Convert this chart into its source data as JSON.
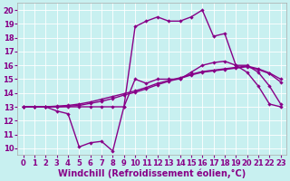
{
  "xlabel": "Windchill (Refroidissement éolien,°C)",
  "bg_color": "#c8f0f0",
  "line_color": "#880088",
  "ylim": [
    9.5,
    20.5
  ],
  "xlim": [
    -0.5,
    23.5
  ],
  "yticks": [
    10,
    11,
    12,
    13,
    14,
    15,
    16,
    17,
    18,
    19,
    20
  ],
  "xticks": [
    0,
    1,
    2,
    3,
    4,
    5,
    6,
    7,
    8,
    9,
    10,
    11,
    12,
    13,
    14,
    15,
    16,
    17,
    18,
    19,
    20,
    21,
    22,
    23
  ],
  "hours": [
    0,
    1,
    2,
    3,
    4,
    5,
    6,
    7,
    8,
    9,
    10,
    11,
    12,
    13,
    14,
    15,
    16,
    17,
    18,
    19,
    20,
    21,
    22,
    23
  ],
  "top_curve": [
    13,
    13,
    13,
    13,
    13,
    13,
    13,
    13,
    13,
    13,
    18.8,
    19.2,
    19.5,
    19.2,
    19.2,
    19.5,
    20.0,
    18.1,
    18.3,
    16.0,
    16.0,
    15.5,
    14.5,
    13.2
  ],
  "bot_curve": [
    13,
    13,
    13,
    12.7,
    12.5,
    10.1,
    10.4,
    10.5,
    9.8,
    13.0,
    15.0,
    14.7,
    15.0,
    15.0,
    15.0,
    15.5,
    16.0,
    16.2,
    16.3,
    16.0,
    15.5,
    14.5,
    13.2,
    13.0
  ],
  "ref1_curve": [
    13,
    13,
    13,
    13.05,
    13.1,
    13.2,
    13.35,
    13.55,
    13.75,
    13.95,
    14.15,
    14.4,
    14.7,
    14.9,
    15.1,
    15.35,
    15.55,
    15.65,
    15.75,
    15.85,
    15.95,
    15.75,
    15.45,
    15.0
  ],
  "ref2_curve": [
    13,
    13,
    13,
    13.0,
    13.05,
    13.1,
    13.25,
    13.4,
    13.6,
    13.85,
    14.05,
    14.3,
    14.6,
    14.85,
    15.05,
    15.3,
    15.5,
    15.6,
    15.7,
    15.8,
    15.9,
    15.7,
    15.4,
    14.8
  ],
  "tick_fontsize": 6.0,
  "xlabel_fontsize": 7.0,
  "linewidth": 1.0,
  "markersize": 2.2
}
